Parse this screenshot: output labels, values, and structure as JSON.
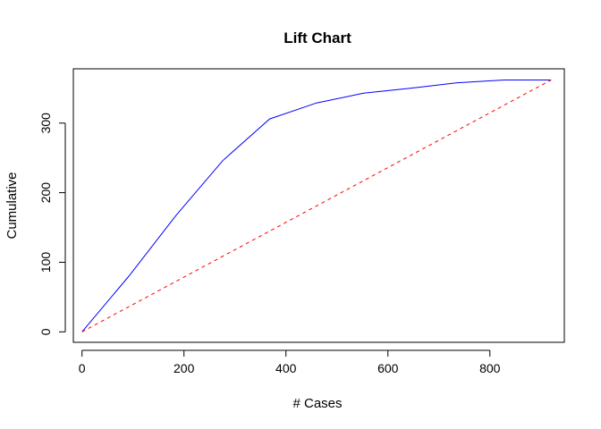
{
  "chart_data": {
    "type": "line",
    "title": "Lift Chart",
    "xlabel": "# Cases",
    "ylabel": "Cumulative",
    "xlim": [
      -17,
      946
    ],
    "ylim": [
      -15,
      378
    ],
    "x_ticks": [
      0,
      200,
      400,
      600,
      800
    ],
    "y_ticks": [
      0,
      100,
      200,
      300
    ],
    "grid": false,
    "series": [
      {
        "color": "#0000ff",
        "line_style": "solid",
        "x": [
          0,
          92,
          184,
          276,
          368,
          460,
          552,
          644,
          736,
          828,
          920
        ],
        "y": [
          0,
          80,
          167,
          246,
          306,
          329,
          343,
          350,
          358,
          362,
          362
        ]
      },
      {
        "color": "#ff0000",
        "line_style": "dashed",
        "x": [
          0,
          920
        ],
        "y": [
          0,
          362
        ]
      }
    ]
  }
}
